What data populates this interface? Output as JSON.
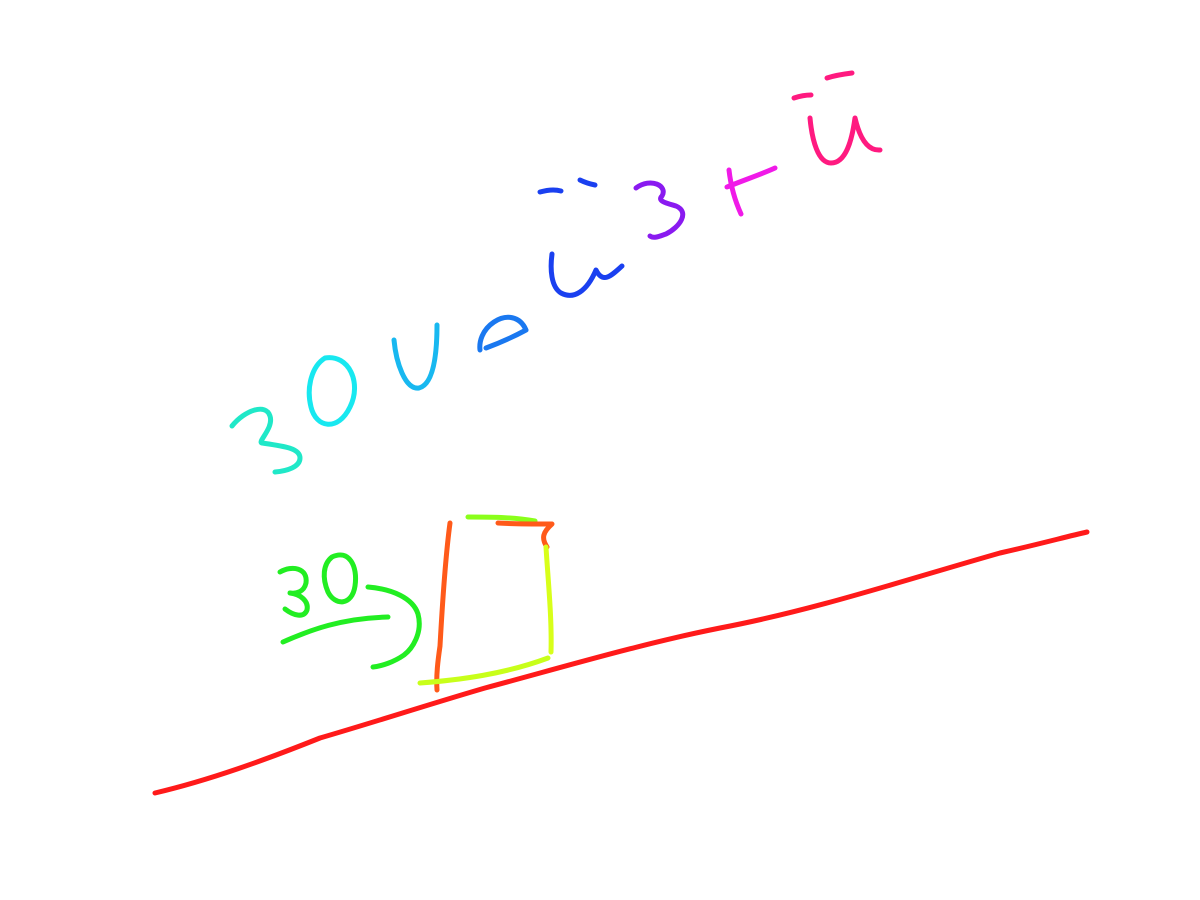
{
  "drawing": {
    "text": "30vaŭstū",
    "text_parts": [
      "3",
      "0",
      "v",
      "a",
      "ŭ",
      "s",
      "t",
      "ū"
    ],
    "label": "30",
    "colors": {
      "ground_line": "#ff1a1a",
      "label_30": "#22ee22",
      "rectangle_left": "#ff5a1a",
      "rectangle_top": "#8aff1a",
      "rectangle_right": "#d8ff1a",
      "rectangle_bottom": "#c8ff1a",
      "text_3": "#20e8c8",
      "text_0": "#18e8f0",
      "text_v": "#18b8f0",
      "text_a": "#1a78f0",
      "text_u_breve": "#1a40f0",
      "text_s": "#8a1af0",
      "text_t": "#f01ae8",
      "text_u_macron": "#ff1a80"
    }
  }
}
